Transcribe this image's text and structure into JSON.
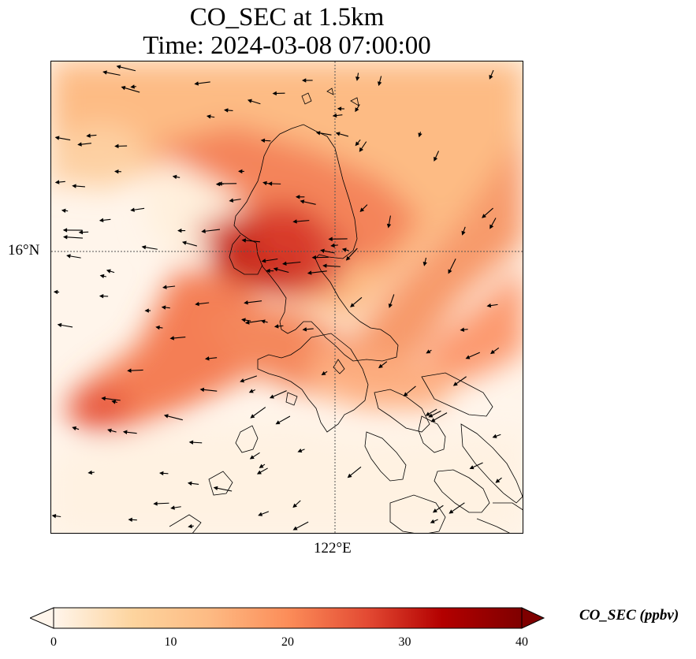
{
  "title_line1": "CO_SEC at 1.5km",
  "title_line2": "Time: 2024-03-08 07:00:00",
  "map": {
    "variable": "CO_SEC",
    "level": "1.5km",
    "time": "2024-03-08 07:00:00",
    "gridlines": {
      "latitude": "16°N",
      "longitude": "122°E"
    },
    "colormap": "OrRd",
    "features": [
      "coastlines",
      "wind-vectors",
      "dotted-gridlines"
    ]
  },
  "colorbar": {
    "label": "CO_SEC (ppbv)",
    "min": 0,
    "max": 40,
    "ticks": [
      "0",
      "10",
      "20",
      "30",
      "40"
    ],
    "extend": "both",
    "colors": [
      "#fff5eb",
      "#fdd49e",
      "#fdbb84",
      "#fc8d59",
      "#e34a33",
      "#b30000",
      "#7f0000"
    ]
  }
}
